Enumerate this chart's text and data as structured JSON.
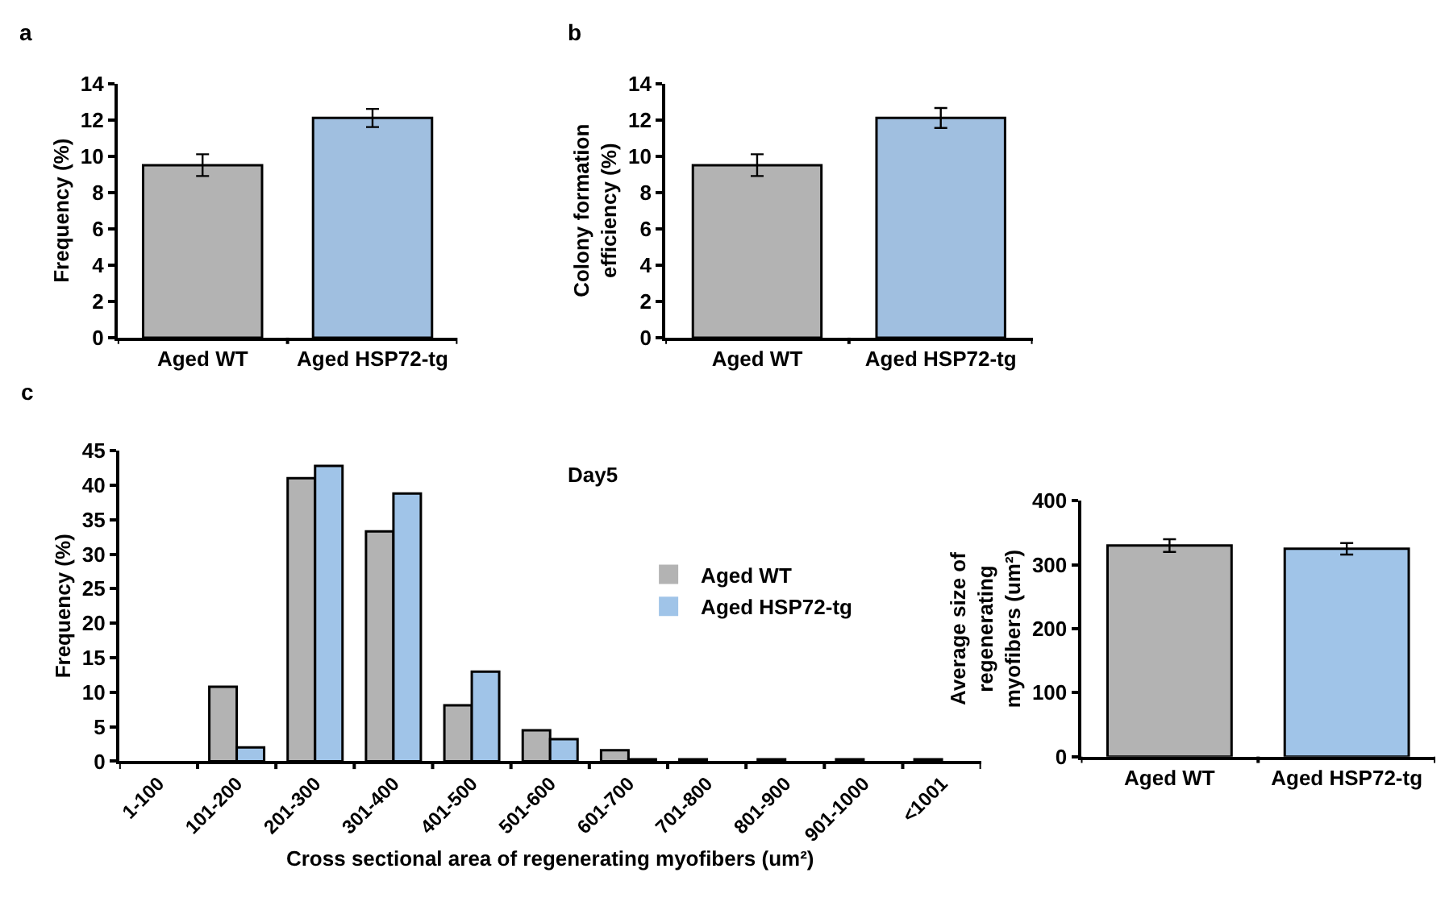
{
  "chart_data": [
    {
      "type": "bar",
      "title": "a",
      "categories": [
        "Aged WT",
        "Aged HSP72-tg"
      ],
      "values": [
        9.5,
        12.1
      ],
      "colors": [
        "#b3b3b3",
        "#a0bfe0"
      ],
      "errors": [
        0.6,
        0.5
      ],
      "ylabel": "Frequency (%)",
      "ylim": [
        0,
        14
      ],
      "yticks": [
        0,
        2,
        4,
        6,
        8,
        10,
        12,
        14
      ],
      "legend": false
    },
    {
      "type": "bar",
      "title": "b",
      "categories": [
        "Aged WT",
        "Aged HSP72-tg"
      ],
      "values": [
        9.5,
        12.1
      ],
      "colors": [
        "#b3b3b3",
        "#a0bfe0"
      ],
      "errors": [
        0.6,
        0.55
      ],
      "ylabel": "Colony formation efficiency (%)",
      "ylim": [
        0,
        14
      ],
      "yticks": [
        0,
        2,
        4,
        6,
        8,
        10,
        12,
        14
      ],
      "legend": false
    },
    {
      "type": "bar",
      "title": "c",
      "categories": [
        "1-100",
        "101-200",
        "201-300",
        "301-400",
        "401-500",
        "501-600",
        "601-700",
        "701-800",
        "801-900",
        "901-1000",
        "<1001"
      ],
      "series": [
        {
          "name": "Aged WT",
          "color": "#b3b3b3",
          "values": [
            0,
            10.8,
            41,
            33.3,
            8.1,
            4.5,
            1.6,
            0.3,
            0.3,
            0.3,
            0.3
          ]
        },
        {
          "name": "Aged HSP72-tg",
          "color": "#a0c4e8",
          "values": [
            0,
            2,
            42.8,
            38.8,
            13,
            3.2,
            0.3,
            0,
            0,
            0,
            0
          ]
        }
      ],
      "xlabel": "Cross sectional area of regenerating myofibers (um²)",
      "ylabel": "Frequency (%)",
      "annotations": [
        "Day5"
      ],
      "ylim": [
        0,
        45
      ],
      "yticks": [
        0,
        5,
        10,
        15,
        20,
        25,
        30,
        35,
        40,
        45
      ],
      "legend": "right"
    },
    {
      "type": "bar",
      "categories": [
        "Aged WT",
        "Aged HSP72-tg"
      ],
      "values": [
        330,
        325
      ],
      "colors": [
        "#b3b3b3",
        "#a0c4e8"
      ],
      "errors": [
        10,
        9
      ],
      "ylabel": "Average size of regenerating myofibers (um²)",
      "ylim": [
        0,
        400
      ],
      "yticks": [
        0,
        100,
        200,
        300,
        400
      ],
      "legend": false
    }
  ]
}
